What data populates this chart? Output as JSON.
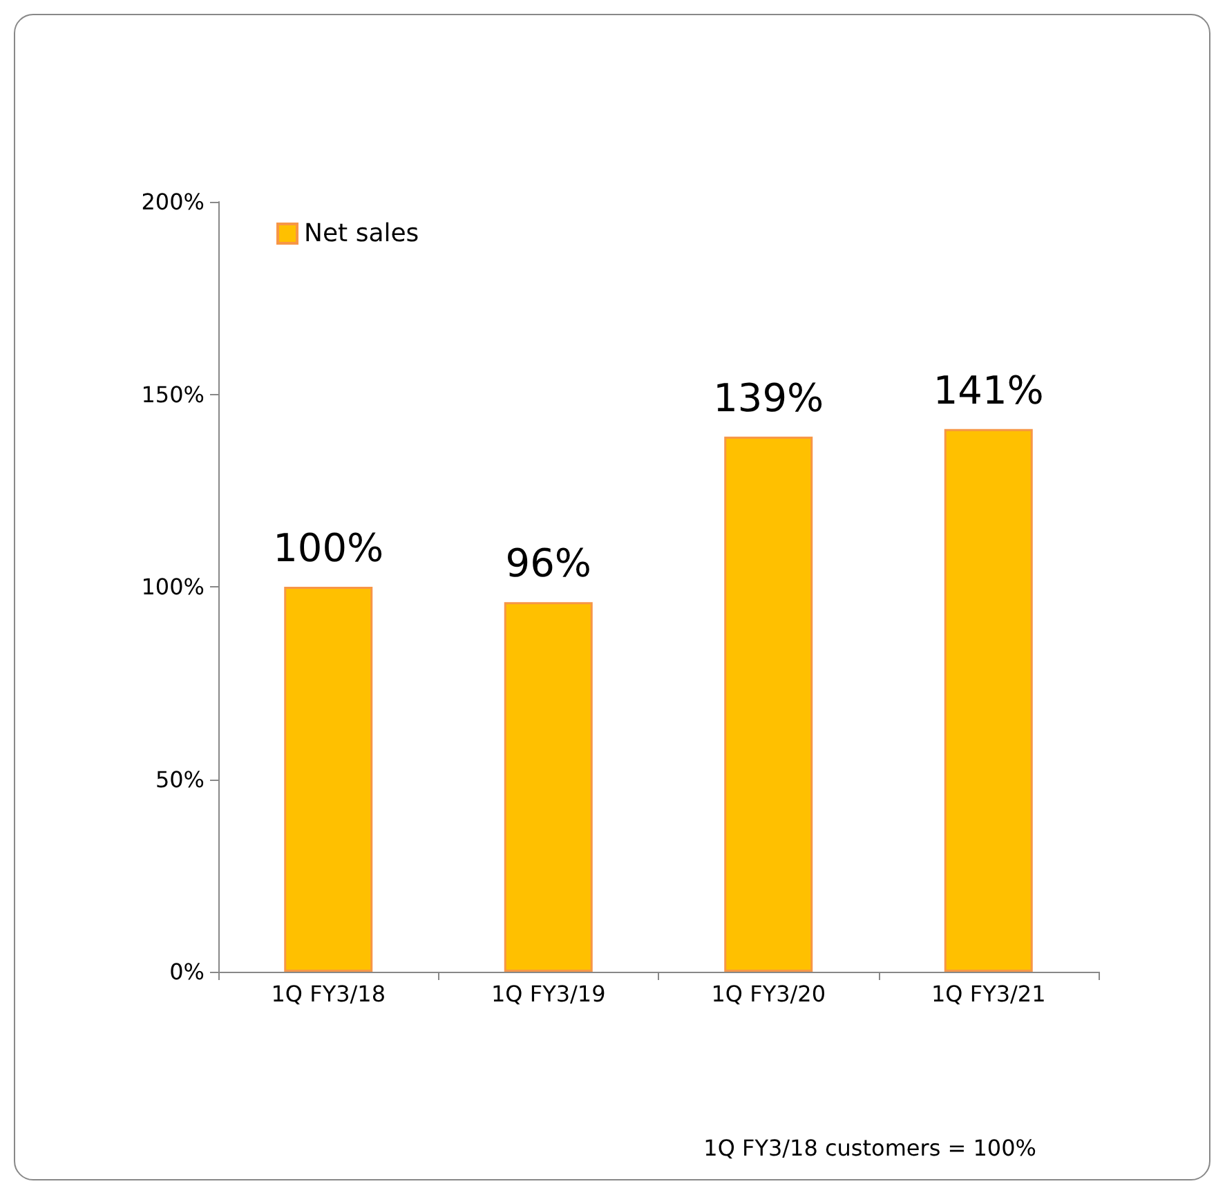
{
  "chart_data": {
    "type": "bar",
    "categories": [
      "1Q FY3/18",
      "1Q FY3/19",
      "1Q FY3/20",
      "1Q FY3/21"
    ],
    "series": [
      {
        "name": "Net sales",
        "color": "#ffc000",
        "values": [
          100,
          96,
          139,
          141
        ],
        "value_labels": [
          "100%",
          "96%",
          "139%",
          "141%"
        ]
      }
    ],
    "ylim": [
      0,
      200
    ],
    "yticks": [
      {
        "value": 0,
        "label": "0%"
      },
      {
        "value": 50,
        "label": "50%"
      },
      {
        "value": 100,
        "label": "100%"
      },
      {
        "value": 150,
        "label": "150%"
      },
      {
        "value": 200,
        "label": "200%"
      }
    ],
    "grid": false,
    "legend": "top left",
    "annotations": [
      "1Q FY3/18 customers = 100%"
    ]
  }
}
